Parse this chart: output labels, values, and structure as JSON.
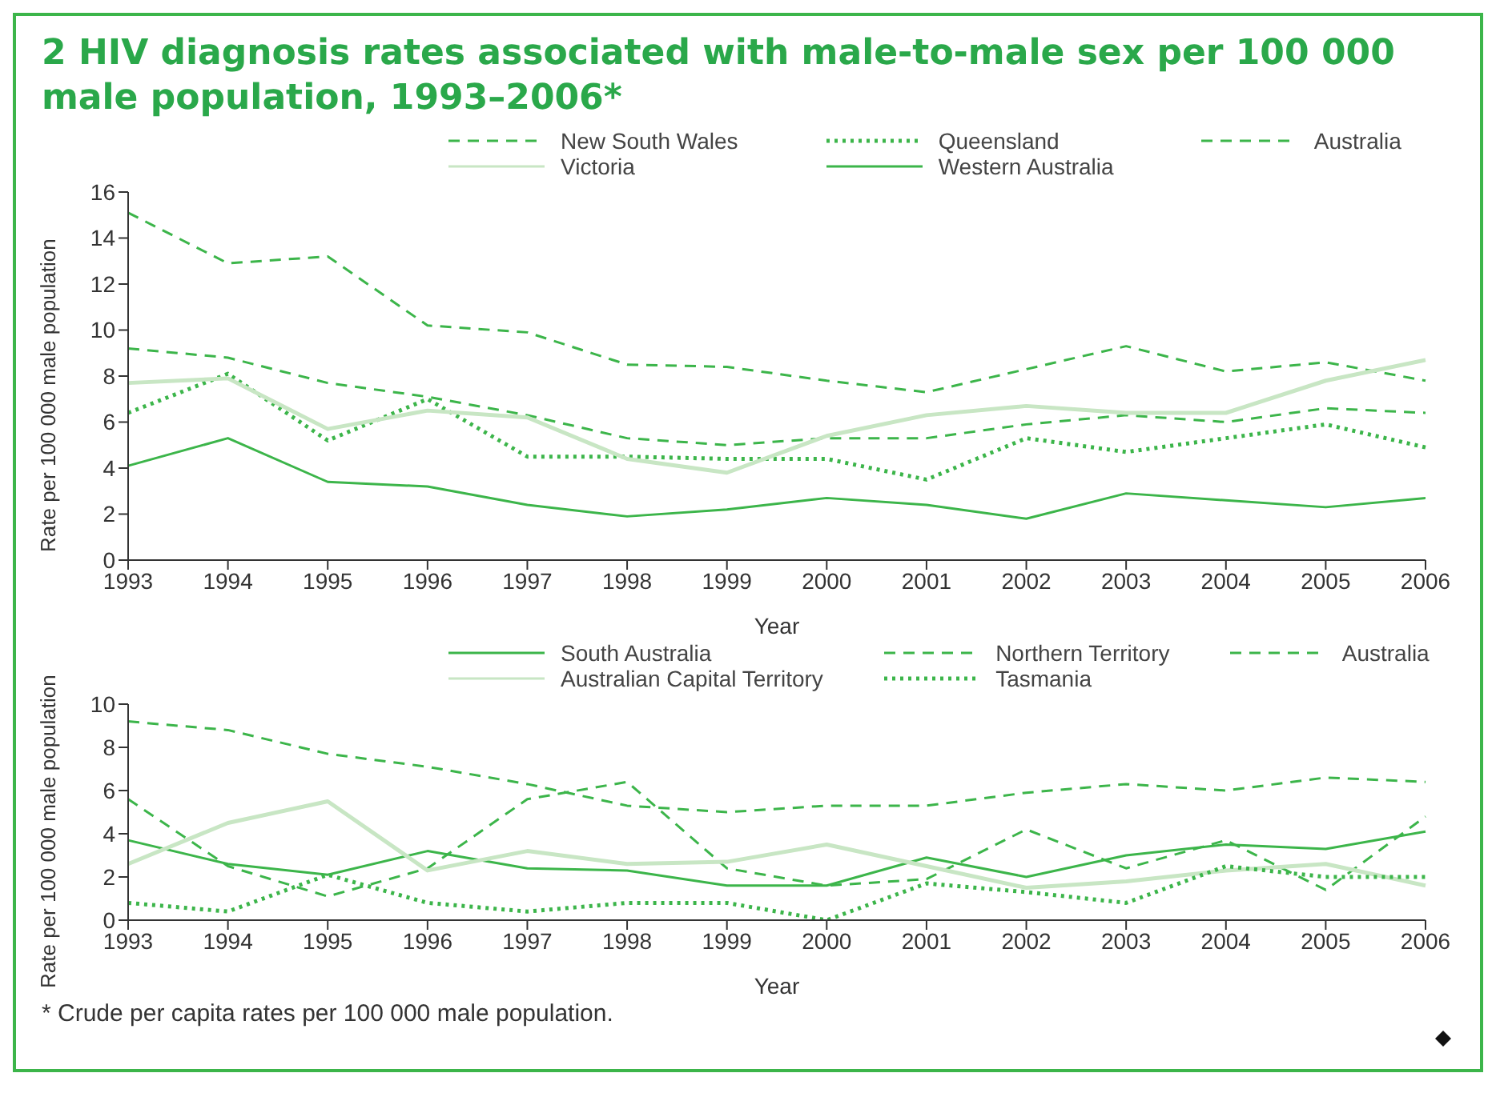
{
  "chart_data": [
    {
      "type": "line",
      "title": "2 HIV diagnosis rates associated with male-to-male sex per 100 000 male population, 1993–2006*",
      "xlabel": "Year",
      "ylabel": "Rate per 100 000 male population",
      "categories": [
        "1993",
        "1994",
        "1995",
        "1996",
        "1997",
        "1998",
        "1999",
        "2000",
        "2001",
        "2002",
        "2003",
        "2004",
        "2005",
        "2006"
      ],
      "ylim": [
        0,
        16
      ],
      "yticks": [
        0,
        2,
        4,
        6,
        8,
        10,
        12,
        14,
        16
      ],
      "grid": false,
      "legend": "top",
      "marker": "none",
      "series": [
        {
          "name": "New South Wales",
          "color": "#3cb54a",
          "line_style": "dashed",
          "values": [
            15.1,
            12.9,
            13.2,
            10.2,
            9.9,
            8.5,
            8.4,
            7.8,
            7.3,
            8.3,
            9.3,
            8.2,
            8.6,
            7.8
          ]
        },
        {
          "name": "Queensland",
          "color": "#3cb54a",
          "line_style": "dotted",
          "values": [
            6.4,
            8.1,
            5.2,
            7.0,
            4.5,
            4.5,
            4.4,
            4.4,
            3.5,
            5.3,
            4.7,
            5.3,
            5.9,
            4.9
          ]
        },
        {
          "name": "Australia",
          "color": "#3cb54a",
          "line_style": "dashed",
          "values": [
            9.2,
            8.8,
            7.7,
            7.1,
            6.3,
            5.3,
            5.0,
            5.3,
            5.3,
            5.9,
            6.3,
            6.0,
            6.6,
            6.4
          ]
        },
        {
          "name": "Victoria",
          "color": "#c8e6c4",
          "line_style": "solid",
          "values": [
            7.7,
            7.9,
            5.7,
            6.5,
            6.2,
            4.4,
            3.8,
            5.4,
            6.3,
            6.7,
            6.4,
            6.4,
            7.8,
            8.7
          ]
        },
        {
          "name": "Western Australia",
          "color": "#3cb54a",
          "line_style": "solid",
          "values": [
            4.1,
            5.3,
            3.4,
            3.2,
            2.4,
            1.9,
            2.2,
            2.7,
            2.4,
            1.8,
            2.9,
            2.6,
            2.3,
            2.7
          ]
        }
      ]
    },
    {
      "type": "line",
      "xlabel": "Year",
      "ylabel": "Rate per 100 000 male population",
      "annotations": [
        "* Crude per capita rates per 100 000 male population."
      ],
      "categories": [
        "1993",
        "1994",
        "1995",
        "1996",
        "1997",
        "1998",
        "1999",
        "2000",
        "2001",
        "2002",
        "2003",
        "2004",
        "2005",
        "2006"
      ],
      "ylim": [
        0,
        10
      ],
      "yticks": [
        0,
        2,
        4,
        6,
        8,
        10
      ],
      "grid": false,
      "legend": "top",
      "marker": "none",
      "series": [
        {
          "name": "South Australia",
          "color": "#3cb54a",
          "line_style": "solid",
          "values": [
            3.7,
            2.6,
            2.1,
            3.2,
            2.4,
            2.3,
            1.6,
            1.6,
            2.9,
            2.0,
            3.0,
            3.5,
            3.3,
            4.1
          ]
        },
        {
          "name": "Northern Territory",
          "color": "#3cb54a",
          "line_style": "dashed",
          "values": [
            5.6,
            2.5,
            1.1,
            2.4,
            5.6,
            6.4,
            2.4,
            1.6,
            1.9,
            4.2,
            2.4,
            3.7,
            1.4,
            4.8
          ]
        },
        {
          "name": "Australia",
          "color": "#3cb54a",
          "line_style": "dashed",
          "values": [
            9.2,
            8.8,
            7.7,
            7.1,
            6.3,
            5.3,
            5.0,
            5.3,
            5.3,
            5.9,
            6.3,
            6.0,
            6.6,
            6.4
          ]
        },
        {
          "name": "Australian Capital Territory",
          "color": "#c8e6c4",
          "line_style": "solid",
          "values": [
            2.6,
            4.5,
            5.5,
            2.3,
            3.2,
            2.6,
            2.7,
            3.5,
            2.5,
            1.5,
            1.8,
            2.3,
            2.6,
            1.6
          ]
        },
        {
          "name": "Tasmania",
          "color": "#3cb54a",
          "line_style": "dotted",
          "values": [
            0.8,
            0.4,
            2.1,
            0.8,
            0.4,
            0.8,
            0.8,
            0,
            1.7,
            1.3,
            0.8,
            2.5,
            2.0,
            2.0
          ]
        }
      ]
    }
  ]
}
